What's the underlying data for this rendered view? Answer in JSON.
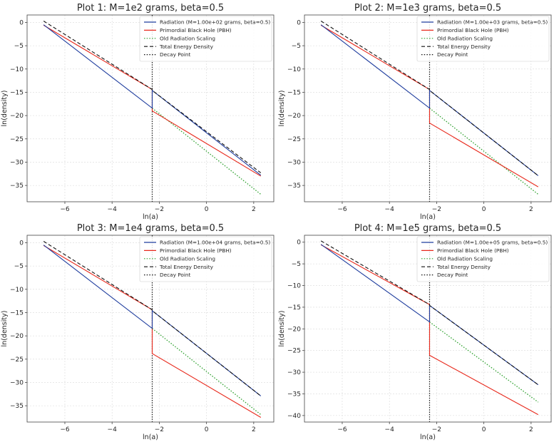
{
  "colors": {
    "radiation": "#1f3d9e",
    "pbh": "#e8291c",
    "old_radiation": "#2ca02c",
    "total": "#111111",
    "decay": "#111111",
    "grid": "#d9d9d9",
    "frame": "#444444"
  },
  "chart_data": [
    {
      "type": "line",
      "title": "Plot 1: M=1e2 grams, beta=0.5",
      "xlabel": "ln(a)",
      "ylabel": "ln(density)",
      "xlim": [
        -7.6,
        2.85
      ],
      "ylim": [
        -38.5,
        1.6
      ],
      "xticks": [
        -6,
        -4,
        -2,
        0,
        2
      ],
      "yticks": [
        0,
        -5,
        -10,
        -15,
        -20,
        -25,
        -30,
        -35
      ],
      "grid": true,
      "legend_position": "top-right",
      "series": [
        {
          "name": "Radiation (M=1.00e+02 grams, beta=0.5)",
          "key": "radiation",
          "style": "solid",
          "x": [
            -6.9,
            -2.3,
            -2.3,
            2.3
          ],
          "y": [
            -0.5,
            -18.4,
            -14.6,
            -32.8
          ]
        },
        {
          "name": "Primordial Black Hole (PBH)",
          "key": "pbh",
          "style": "solid",
          "x": [
            -6.9,
            -2.3,
            -2.3,
            2.3
          ],
          "y": [
            -0.6,
            -14.4,
            -19.0,
            -33.0
          ]
        },
        {
          "name": "Old Radiation Scaling",
          "key": "old_radiation",
          "style": "dotted",
          "x": [
            -2.3,
            2.3
          ],
          "y": [
            -18.4,
            -36.9
          ]
        },
        {
          "name": "Total Energy Density",
          "key": "total",
          "style": "dashed",
          "x": [
            -6.9,
            -2.3,
            -2.3,
            2.3
          ],
          "y": [
            0.3,
            -14.4,
            -14.6,
            -32.3
          ]
        }
      ],
      "decay_point": {
        "name": "Decay Point",
        "x": -2.3
      }
    },
    {
      "type": "line",
      "title": "Plot 2: M=1e3 grams, beta=0.5",
      "xlabel": "ln(a)",
      "ylabel": "ln(density)",
      "xlim": [
        -7.6,
        2.85
      ],
      "ylim": [
        -38.5,
        1.6
      ],
      "xticks": [
        -6,
        -4,
        -2,
        0,
        2
      ],
      "yticks": [
        0,
        -5,
        -10,
        -15,
        -20,
        -25,
        -30,
        -35
      ],
      "grid": true,
      "legend_position": "top-right",
      "series": [
        {
          "name": "Radiation (M=1.00e+03 grams, beta=0.5)",
          "key": "radiation",
          "style": "solid",
          "x": [
            -6.9,
            -2.3,
            -2.3,
            2.3
          ],
          "y": [
            -0.5,
            -18.4,
            -14.6,
            -32.9
          ]
        },
        {
          "name": "Primordial Black Hole (PBH)",
          "key": "pbh",
          "style": "solid",
          "x": [
            -6.9,
            -2.3,
            -2.3,
            2.3
          ],
          "y": [
            -0.6,
            -14.4,
            -21.6,
            -35.3
          ]
        },
        {
          "name": "Old Radiation Scaling",
          "key": "old_radiation",
          "style": "dotted",
          "x": [
            -2.3,
            2.3
          ],
          "y": [
            -18.4,
            -36.9
          ]
        },
        {
          "name": "Total Energy Density",
          "key": "total",
          "style": "dashed",
          "x": [
            -6.9,
            -2.3,
            -2.3,
            2.3
          ],
          "y": [
            0.3,
            -14.4,
            -14.6,
            -32.9
          ]
        }
      ],
      "decay_point": {
        "name": "Decay Point",
        "x": -2.3
      }
    },
    {
      "type": "line",
      "title": "Plot 3: M=1e4 grams, beta=0.5",
      "xlabel": "ln(a)",
      "ylabel": "ln(density)",
      "xlim": [
        -7.6,
        2.85
      ],
      "ylim": [
        -38.5,
        1.6
      ],
      "xticks": [
        -6,
        -4,
        -2,
        0,
        2
      ],
      "yticks": [
        0,
        -5,
        -10,
        -15,
        -20,
        -25,
        -30,
        -35
      ],
      "grid": true,
      "legend_position": "top-right",
      "series": [
        {
          "name": "Radiation (M=1.00e+04 grams, beta=0.5)",
          "key": "radiation",
          "style": "solid",
          "x": [
            -6.9,
            -2.3,
            -2.3,
            2.3
          ],
          "y": [
            -0.5,
            -18.4,
            -14.6,
            -32.9
          ]
        },
        {
          "name": "Primordial Black Hole (PBH)",
          "key": "pbh",
          "style": "solid",
          "x": [
            -6.9,
            -2.3,
            -2.3,
            2.3
          ],
          "y": [
            -0.6,
            -14.4,
            -23.8,
            -37.5
          ]
        },
        {
          "name": "Old Radiation Scaling",
          "key": "old_radiation",
          "style": "dotted",
          "x": [
            -2.3,
            2.3
          ],
          "y": [
            -18.4,
            -36.9
          ]
        },
        {
          "name": "Total Energy Density",
          "key": "total",
          "style": "dashed",
          "x": [
            -6.9,
            -2.3,
            -2.3,
            2.3
          ],
          "y": [
            0.3,
            -14.4,
            -14.6,
            -32.9
          ]
        }
      ],
      "decay_point": {
        "name": "Decay Point",
        "x": -2.3
      }
    },
    {
      "type": "line",
      "title": "Plot 4: M=1e5 grams, beta=0.5",
      "xlabel": "ln(a)",
      "ylabel": "ln(density)",
      "xlim": [
        -7.6,
        2.85
      ],
      "ylim": [
        -41.5,
        1.6
      ],
      "xticks": [
        -6,
        -4,
        -2,
        0,
        2
      ],
      "yticks": [
        0,
        -5,
        -10,
        -15,
        -20,
        -25,
        -30,
        -35,
        -40
      ],
      "grid": true,
      "legend_position": "top-right",
      "series": [
        {
          "name": "Radiation (M=1.00e+05 grams, beta=0.5)",
          "key": "radiation",
          "style": "solid",
          "x": [
            -6.9,
            -2.3,
            -2.3,
            2.3
          ],
          "y": [
            -0.5,
            -18.4,
            -14.6,
            -32.9
          ]
        },
        {
          "name": "Primordial Black Hole (PBH)",
          "key": "pbh",
          "style": "solid",
          "x": [
            -6.9,
            -2.3,
            -2.3,
            2.3
          ],
          "y": [
            -0.6,
            -14.4,
            -26.1,
            -39.8
          ]
        },
        {
          "name": "Old Radiation Scaling",
          "key": "old_radiation",
          "style": "dotted",
          "x": [
            -2.3,
            2.3
          ],
          "y": [
            -18.4,
            -36.9
          ]
        },
        {
          "name": "Total Energy Density",
          "key": "total",
          "style": "dashed",
          "x": [
            -6.9,
            -2.3,
            -2.3,
            2.3
          ],
          "y": [
            0.3,
            -14.4,
            -14.6,
            -32.9
          ]
        }
      ],
      "decay_point": {
        "name": "Decay Point",
        "x": -2.3
      }
    }
  ]
}
